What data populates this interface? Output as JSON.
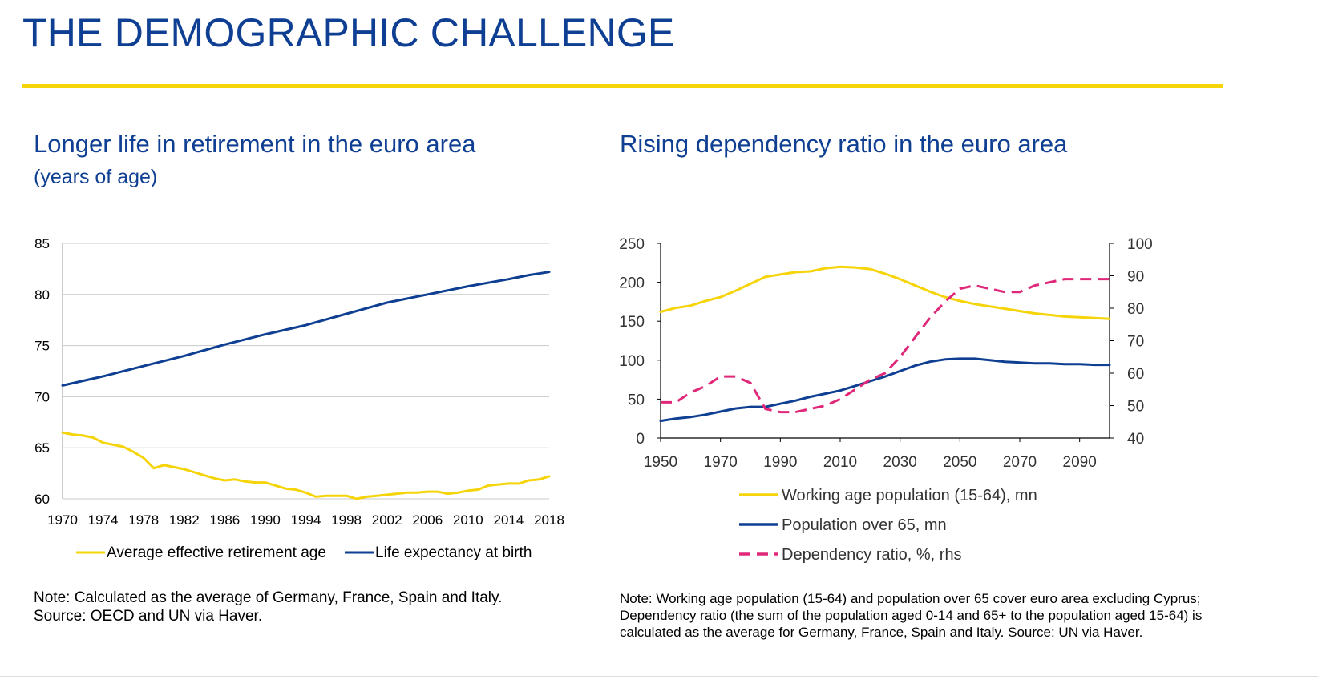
{
  "header": {
    "title": "THE DEMOGRAPHIC CHALLENGE"
  },
  "colors": {
    "title_blue": "#0f3f92",
    "yellow": "#f5d40a",
    "navy": "#0f3f92",
    "pink": "#e0287a"
  },
  "left": {
    "title": "Longer life in retirement in the euro area",
    "subtitle": "(years of age)",
    "note_lines": [
      "Note: Calculated as the average of Germany, France, Spain and Italy.",
      "Source: OECD and UN via Haver."
    ]
  },
  "right": {
    "title": "Rising dependency ratio in the euro area",
    "note_lines": [
      "Note: Working age population (15-64) and population over 65 cover euro area excluding Cyprus;",
      "Dependency ratio (the sum of the population aged 0-14 and 65+ to the population aged 15-64) is",
      "calculated as the average for  Germany, France, Spain and Italy.  Source: UN via Haver."
    ]
  },
  "chart_data": [
    {
      "type": "line",
      "title": "Longer life in retirement in the euro area",
      "ylabel": "years of age",
      "ylim": [
        60,
        85
      ],
      "yticks": [
        "60",
        "65",
        "70",
        "75",
        "80",
        "85"
      ],
      "xlim": [
        1970,
        2018
      ],
      "xticks": [
        "1970",
        "1974",
        "1978",
        "1982",
        "1986",
        "1990",
        "1994",
        "1998",
        "2002",
        "2006",
        "2010",
        "2014",
        "2018"
      ],
      "legend_position": "bottom",
      "series": [
        {
          "name": "Average effective retirement age",
          "color": "#f5d40a",
          "x": [
            1970,
            1971,
            1972,
            1973,
            1974,
            1975,
            1976,
            1977,
            1978,
            1979,
            1980,
            1981,
            1982,
            1983,
            1984,
            1985,
            1986,
            1987,
            1988,
            1989,
            1990,
            1991,
            1992,
            1993,
            1994,
            1995,
            1996,
            1997,
            1998,
            1999,
            2000,
            2001,
            2002,
            2003,
            2004,
            2005,
            2006,
            2007,
            2008,
            2009,
            2010,
            2011,
            2012,
            2013,
            2014,
            2015,
            2016,
            2017,
            2018
          ],
          "values": [
            66.5,
            66.3,
            66.2,
            66.0,
            65.5,
            65.3,
            65.1,
            64.6,
            64.0,
            63.0,
            63.3,
            63.1,
            62.9,
            62.6,
            62.3,
            62.0,
            61.8,
            61.9,
            61.7,
            61.6,
            61.6,
            61.3,
            61.0,
            60.9,
            60.6,
            60.2,
            60.3,
            60.3,
            60.3,
            60.0,
            60.2,
            60.3,
            60.4,
            60.5,
            60.6,
            60.6,
            60.7,
            60.7,
            60.5,
            60.6,
            60.8,
            60.9,
            61.3,
            61.4,
            61.5,
            61.5,
            61.8,
            61.9,
            62.2
          ]
        },
        {
          "name": "Life expectancy at birth",
          "color": "#0f3f92",
          "x": [
            1970,
            1974,
            1978,
            1982,
            1986,
            1990,
            1994,
            1998,
            2002,
            2006,
            2010,
            2014,
            2016,
            2018
          ],
          "values": [
            71.1,
            72.0,
            73.0,
            74.0,
            75.1,
            76.1,
            77.0,
            78.1,
            79.2,
            80.0,
            80.8,
            81.5,
            81.9,
            82.2
          ]
        }
      ]
    },
    {
      "type": "line",
      "title": "Rising dependency ratio in the euro area",
      "ylim": [
        0,
        250
      ],
      "yticks": [
        "0",
        "50",
        "100",
        "150",
        "200",
        "250"
      ],
      "y2lim": [
        40,
        100
      ],
      "y2ticks": [
        "40",
        "50",
        "60",
        "70",
        "80",
        "90",
        "100"
      ],
      "xlim": [
        1950,
        2100
      ],
      "xticks": [
        "1950",
        "1970",
        "1990",
        "2010",
        "2030",
        "2050",
        "2070",
        "2090"
      ],
      "legend_position": "bottom",
      "series": [
        {
          "name": "Working age population (15-64), mn",
          "color": "#f5d40a",
          "axis": "left",
          "dash": "solid",
          "x": [
            1950,
            1955,
            1960,
            1965,
            1970,
            1975,
            1980,
            1985,
            1990,
            1995,
            2000,
            2005,
            2010,
            2015,
            2020,
            2025,
            2030,
            2035,
            2040,
            2045,
            2050,
            2055,
            2060,
            2065,
            2070,
            2075,
            2080,
            2085,
            2090,
            2095,
            2100
          ],
          "values": [
            162,
            167,
            170,
            176,
            181,
            189,
            198,
            207,
            210,
            213,
            214,
            218,
            220,
            219,
            217,
            211,
            204,
            196,
            188,
            181,
            176,
            172,
            169,
            166,
            163,
            160,
            158,
            156,
            155,
            154,
            153
          ]
        },
        {
          "name": "Population over 65, mn",
          "color": "#0f3f92",
          "axis": "left",
          "dash": "solid",
          "x": [
            1950,
            1955,
            1960,
            1965,
            1970,
            1975,
            1980,
            1985,
            1990,
            1995,
            2000,
            2005,
            2010,
            2015,
            2020,
            2025,
            2030,
            2035,
            2040,
            2045,
            2050,
            2055,
            2060,
            2065,
            2070,
            2075,
            2080,
            2085,
            2090,
            2095,
            2100
          ],
          "values": [
            22,
            25,
            27,
            30,
            34,
            38,
            40,
            40,
            44,
            48,
            53,
            57,
            61,
            67,
            73,
            79,
            86,
            93,
            98,
            101,
            102,
            102,
            100,
            98,
            97,
            96,
            96,
            95,
            95,
            94,
            94
          ]
        },
        {
          "name": "Dependency ratio, %, rhs",
          "color": "#e0287a",
          "axis": "right",
          "dash": "dashed",
          "x": [
            1950,
            1955,
            1960,
            1965,
            1970,
            1975,
            1980,
            1985,
            1990,
            1995,
            2000,
            2005,
            2010,
            2015,
            2020,
            2025,
            2030,
            2035,
            2040,
            2045,
            2050,
            2055,
            2060,
            2065,
            2070,
            2075,
            2080,
            2085,
            2090,
            2095,
            2100
          ],
          "values": [
            51,
            51,
            54,
            56,
            59,
            59,
            57,
            49,
            48,
            48,
            49,
            50,
            52,
            55,
            58,
            60,
            65,
            71,
            77,
            82,
            86,
            87,
            86,
            85,
            85,
            87,
            88,
            89,
            89,
            89,
            89
          ]
        }
      ]
    }
  ]
}
